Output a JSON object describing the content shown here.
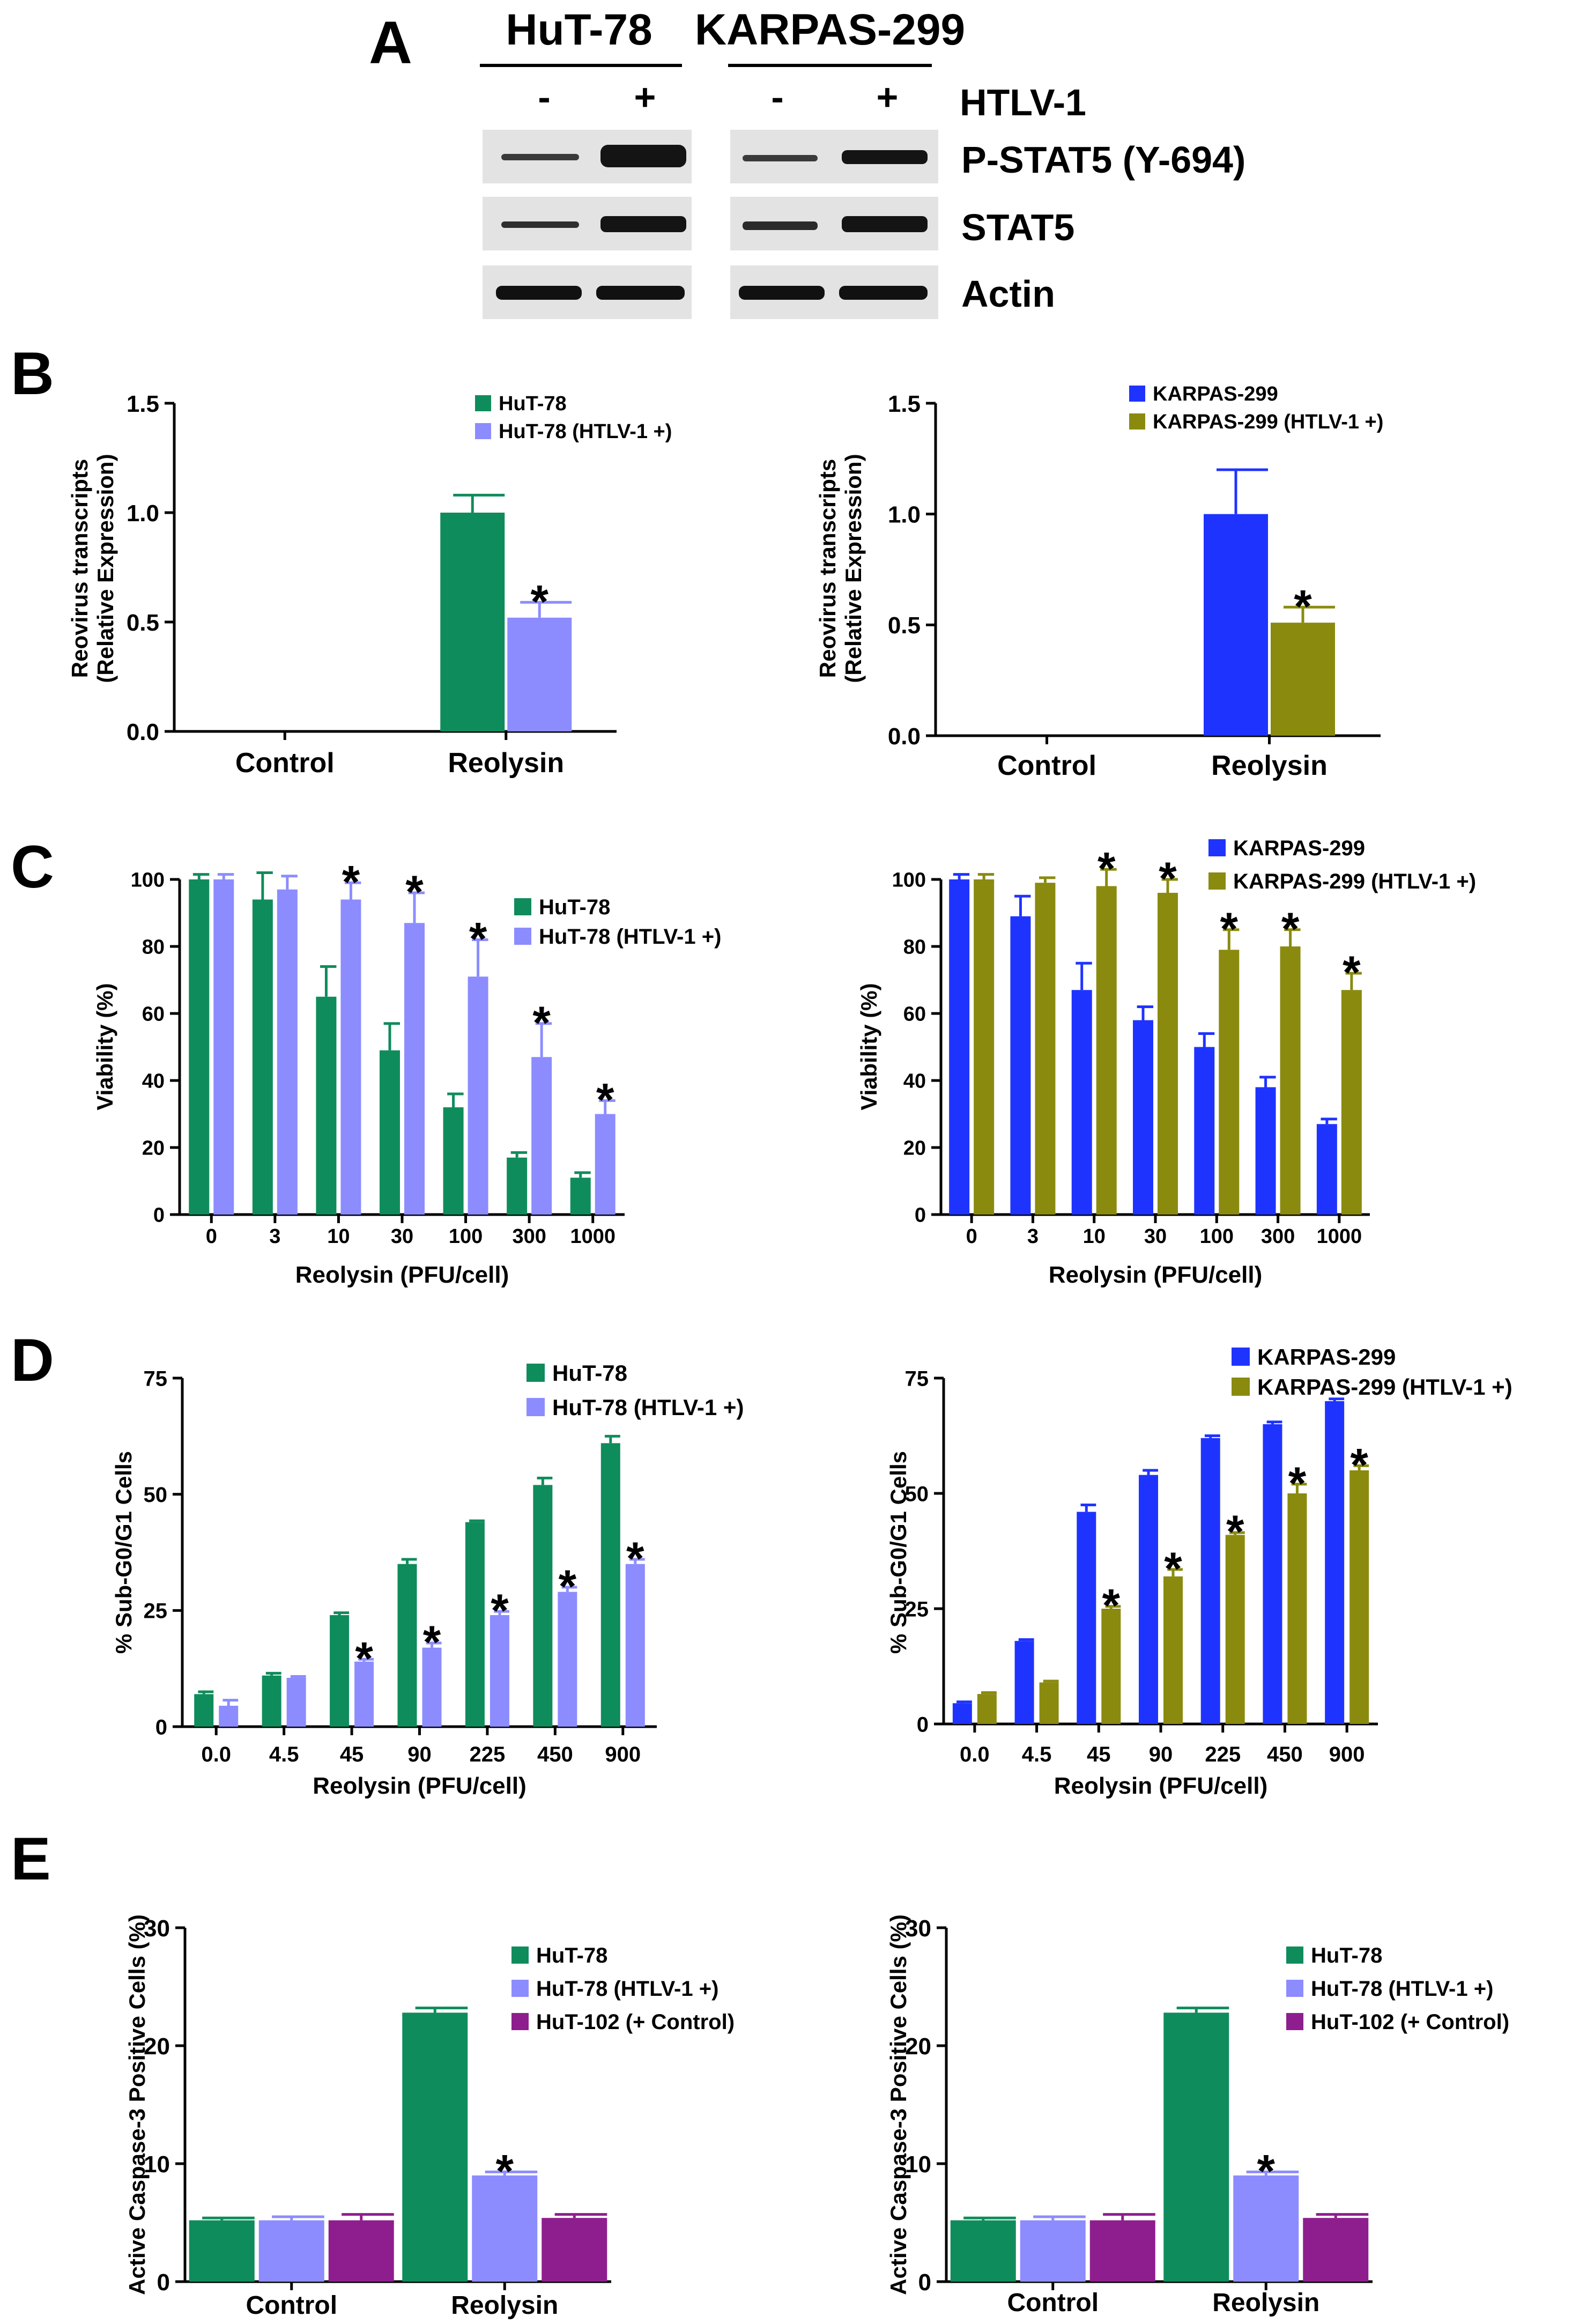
{
  "panel_letters": [
    "A",
    "B",
    "C",
    "D",
    "E"
  ],
  "panel_a": {
    "cell_lines": [
      "HuT-78",
      "KARPAS-299"
    ],
    "lane_signs": [
      "-",
      "+",
      "-",
      "+"
    ],
    "treatment_label": "HTLV-1",
    "blot_rows": [
      "P-STAT5 (Y-694)",
      "STAT5",
      "Actin"
    ]
  },
  "colors": {
    "hut78": "#0f8c5c",
    "hut78_htlv": "#8c8cff",
    "karpas": "#1f33ff",
    "karpas_htlv": "#8a8a0f",
    "hut102": "#8e1e8e"
  },
  "chart_data": [
    {
      "id": "B-left",
      "type": "bar",
      "categories": [
        "Control",
        "Reolysin"
      ],
      "series": [
        {
          "name": "HuT-78",
          "color_key": "hut78",
          "values": [
            0,
            1.0
          ],
          "errors": [
            0,
            0.08
          ],
          "stars": [
            false,
            false
          ]
        },
        {
          "name": "HuT-78 (HTLV-1 +)",
          "color_key": "hut78_htlv",
          "values": [
            0,
            0.52
          ],
          "errors": [
            0,
            0.07
          ],
          "stars": [
            false,
            true
          ]
        }
      ],
      "ylabel_lines": [
        "Reovirus transcripts",
        "(Relative Expression)"
      ],
      "xlabel": "",
      "ylim": [
        0,
        1.5
      ],
      "yticks": [
        0,
        0.5,
        1.0,
        1.5
      ],
      "ytick_labels": [
        "0.0",
        "0.5",
        "1.0",
        "1.5"
      ],
      "legend": "top-center"
    },
    {
      "id": "B-right",
      "type": "bar",
      "categories": [
        "Control",
        "Reolysin"
      ],
      "series": [
        {
          "name": "KARPAS-299",
          "color_key": "karpas",
          "values": [
            0,
            1.0
          ],
          "errors": [
            0,
            0.2
          ],
          "stars": [
            false,
            false
          ]
        },
        {
          "name": "KARPAS-299 (HTLV-1 +)",
          "color_key": "karpas_htlv",
          "values": [
            0,
            0.51
          ],
          "errors": [
            0,
            0.07
          ],
          "stars": [
            false,
            true
          ]
        }
      ],
      "ylabel_lines": [
        "Reovirus transcripts",
        "(Relative Expression)"
      ],
      "xlabel": "",
      "ylim": [
        0,
        1.5
      ],
      "yticks": [
        0,
        0.5,
        1.0,
        1.5
      ],
      "ytick_labels": [
        "0.0",
        "0.5",
        "1.0",
        "1.5"
      ],
      "legend": "top-center"
    },
    {
      "id": "C-left",
      "type": "bar",
      "categories": [
        "0",
        "3",
        "10",
        "30",
        "100",
        "300",
        "1000"
      ],
      "series": [
        {
          "name": "HuT-78",
          "color_key": "hut78",
          "values": [
            100,
            94,
            65,
            49,
            32,
            17,
            11
          ],
          "errors": [
            1.5,
            8,
            9,
            8,
            4,
            1.5,
            1.5
          ],
          "stars": [
            false,
            false,
            false,
            false,
            false,
            false,
            false
          ]
        },
        {
          "name": "HuT-78 (HTLV-1 +)",
          "color_key": "hut78_htlv",
          "values": [
            100,
            97,
            94,
            87,
            71,
            47,
            30
          ],
          "errors": [
            1.5,
            4,
            5,
            9,
            11,
            10,
            4
          ],
          "stars": [
            false,
            false,
            true,
            true,
            true,
            true,
            true
          ]
        }
      ],
      "ylabel_lines": [
        "Viability (%)"
      ],
      "xlabel": "Reolysin (PFU/cell)",
      "ylim": [
        0,
        100
      ],
      "yticks": [
        0,
        20,
        40,
        60,
        80,
        100
      ],
      "ytick_labels": [
        "0",
        "20",
        "40",
        "60",
        "80",
        "100"
      ],
      "legend": "top-right"
    },
    {
      "id": "C-right",
      "type": "bar",
      "categories": [
        "0",
        "3",
        "10",
        "30",
        "100",
        "300",
        "1000"
      ],
      "series": [
        {
          "name": "KARPAS-299",
          "color_key": "karpas",
          "values": [
            100,
            89,
            67,
            58,
            50,
            38,
            27
          ],
          "errors": [
            1.5,
            6,
            8,
            4,
            4,
            3,
            1.5
          ],
          "stars": [
            false,
            false,
            false,
            false,
            false,
            false,
            false
          ]
        },
        {
          "name": "KARPAS-299 (HTLV-1 +)",
          "color_key": "karpas_htlv",
          "values": [
            100,
            99,
            98,
            96,
            79,
            80,
            67
          ],
          "errors": [
            1.5,
            1.5,
            5,
            4,
            6,
            5,
            5
          ],
          "stars": [
            false,
            false,
            true,
            true,
            true,
            true,
            true
          ]
        }
      ],
      "ylabel_lines": [
        "Viability (%)"
      ],
      "xlabel": "Reolysin (PFU/cell)",
      "ylim": [
        0,
        100
      ],
      "yticks": [
        0,
        20,
        40,
        60,
        80,
        100
      ],
      "ytick_labels": [
        "0",
        "20",
        "40",
        "60",
        "80",
        "100"
      ],
      "legend": "top-right"
    },
    {
      "id": "D-left",
      "type": "bar",
      "categories": [
        "0.0",
        "4.5",
        "45",
        "90",
        "225",
        "450",
        "900"
      ],
      "series": [
        {
          "name": "HuT-78",
          "color_key": "hut78",
          "values": [
            7,
            11,
            24,
            35,
            44,
            52,
            61
          ],
          "errors": [
            0.5,
            0.5,
            0.5,
            1,
            0.3,
            1.5,
            1.5
          ],
          "stars": [
            false,
            false,
            false,
            false,
            false,
            false,
            false
          ]
        },
        {
          "name": "HuT-78 (HTLV-1 +)",
          "color_key": "hut78_htlv",
          "values": [
            4.5,
            10.5,
            14,
            17,
            24,
            29,
            35
          ],
          "errors": [
            1.2,
            0.3,
            0.5,
            1,
            0.8,
            1,
            1
          ],
          "stars": [
            false,
            false,
            true,
            true,
            true,
            true,
            true
          ]
        }
      ],
      "ylabel_lines": [
        "% Sub-G0/G1 Cells"
      ],
      "xlabel": "Reolysin (PFU/cell)",
      "ylim": [
        0,
        75
      ],
      "yticks": [
        0,
        25,
        50,
        75
      ],
      "ytick_labels": [
        "0",
        "25",
        "50",
        "75"
      ],
      "legend": "top-right"
    },
    {
      "id": "D-right",
      "type": "bar",
      "categories": [
        "0.0",
        "4.5",
        "45",
        "90",
        "225",
        "450",
        "900"
      ],
      "series": [
        {
          "name": "KARPAS-299",
          "color_key": "karpas",
          "values": [
            4.5,
            18,
            46,
            54,
            62,
            65,
            70
          ],
          "errors": [
            0.3,
            0.3,
            1.5,
            1,
            0.5,
            0.5,
            0.5
          ],
          "stars": [
            false,
            false,
            false,
            false,
            false,
            false,
            false
          ]
        },
        {
          "name": "KARPAS-299 (HTLV-1 +)",
          "color_key": "karpas_htlv",
          "values": [
            6.5,
            9,
            25,
            32,
            41,
            50,
            55
          ],
          "errors": [
            0.3,
            0.3,
            0.5,
            1.5,
            0.5,
            2,
            1
          ],
          "stars": [
            false,
            false,
            true,
            true,
            true,
            true,
            true
          ]
        }
      ],
      "ylabel_lines": [
        "% Sub-G0/G1 Cells"
      ],
      "xlabel": "Reolysin (PFU/cell)",
      "ylim": [
        0,
        75
      ],
      "yticks": [
        0,
        25,
        50,
        75
      ],
      "ytick_labels": [
        "0",
        "25",
        "50",
        "75"
      ],
      "legend": "top-right"
    },
    {
      "id": "E-left",
      "type": "bar",
      "categories": [
        "Control",
        "Reolysin"
      ],
      "series": [
        {
          "name": "HuT-78",
          "color_key": "hut78",
          "values": [
            5.2,
            22.8
          ],
          "errors": [
            0.2,
            0.4
          ],
          "stars": [
            false,
            false
          ]
        },
        {
          "name": "HuT-78 (HTLV-1 +)",
          "color_key": "hut78_htlv",
          "values": [
            5.2,
            9.0
          ],
          "errors": [
            0.3,
            0.3
          ],
          "stars": [
            false,
            true
          ]
        },
        {
          "name": "HuT-102 (+ Control)",
          "color_key": "hut102",
          "values": [
            5.2,
            5.4
          ],
          "errors": [
            0.5,
            0.3
          ],
          "stars": [
            false,
            false
          ]
        }
      ],
      "ylabel_lines": [
        "Active Caspase-3 Positive Cells (%)"
      ],
      "xlabel": "",
      "ylim": [
        0,
        30
      ],
      "yticks": [
        0,
        10,
        20,
        30
      ],
      "ytick_labels": [
        "0",
        "10",
        "20",
        "30"
      ],
      "legend": "top-right"
    },
    {
      "id": "E-right",
      "type": "bar",
      "categories": [
        "Control",
        "Reolysin"
      ],
      "series": [
        {
          "name": "HuT-78",
          "color_key": "hut78",
          "values": [
            5.2,
            22.8
          ],
          "errors": [
            0.2,
            0.4
          ],
          "stars": [
            false,
            false
          ]
        },
        {
          "name": "HuT-78 (HTLV-1 +)",
          "color_key": "hut78_htlv",
          "values": [
            5.2,
            9.0
          ],
          "errors": [
            0.3,
            0.3
          ],
          "stars": [
            false,
            true
          ]
        },
        {
          "name": "HuT-102 (+ Control)",
          "color_key": "hut102",
          "values": [
            5.2,
            5.4
          ],
          "errors": [
            0.5,
            0.3
          ],
          "stars": [
            false,
            false
          ]
        }
      ],
      "ylabel_lines": [
        "Active Caspase-3 Positive Cells (%)"
      ],
      "xlabel": "",
      "ylim": [
        0,
        30
      ],
      "yticks": [
        0,
        10,
        20,
        30
      ],
      "ytick_labels": [
        "0",
        "10",
        "20",
        "30"
      ],
      "legend": "top-right"
    }
  ]
}
